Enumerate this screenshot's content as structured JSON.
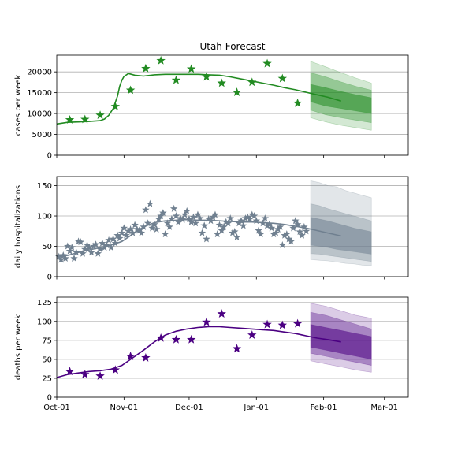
{
  "figure": {
    "title": "Utah Forecast"
  },
  "x_axis": {
    "ticks": [
      {
        "label": "Oct-01",
        "day": 0
      },
      {
        "label": "Nov-01",
        "day": 31
      },
      {
        "label": "Dec-01",
        "day": 61
      },
      {
        "label": "Jan-01",
        "day": 92
      },
      {
        "label": "Feb-01",
        "day": 123
      },
      {
        "label": "Mar-01",
        "day": 151
      }
    ],
    "xlim": [
      0,
      162
    ],
    "unit": "days since Oct-01"
  },
  "colors": {
    "cases": "#228b22",
    "hosp": "#708090",
    "deaths": "#4b0082",
    "grid": "#b0b0b0"
  },
  "chart_data": [
    {
      "type": "line",
      "title": "Utah Forecast",
      "ylabel": "cases per week",
      "ylim": [
        0,
        24000
      ],
      "yticks": [
        0,
        5000,
        10000,
        15000,
        20000
      ],
      "grid": "horizontal",
      "model": {
        "x": [
          0,
          5,
          10,
          15,
          20,
          22,
          24,
          26,
          28,
          29,
          30,
          31,
          33,
          36,
          40,
          45,
          50,
          55,
          60,
          65,
          70,
          75,
          80,
          85,
          90,
          95,
          100,
          105,
          110,
          115,
          120,
          125,
          131
        ],
        "y": [
          7500,
          7900,
          8000,
          8100,
          8300,
          8700,
          9600,
          11200,
          14200,
          16500,
          18000,
          18900,
          19600,
          19200,
          19000,
          19300,
          19400,
          19400,
          19400,
          19400,
          19300,
          19200,
          18800,
          18300,
          17800,
          17300,
          16800,
          16200,
          15700,
          15100,
          14500,
          13900,
          13000
        ]
      },
      "observed": {
        "x": [
          6,
          13,
          20,
          27,
          34,
          41,
          48,
          55,
          62,
          69,
          76,
          83,
          90,
          97,
          104,
          111
        ],
        "y": [
          8500,
          8600,
          9600,
          11700,
          15600,
          20800,
          22700,
          18000,
          20700,
          18800,
          17300,
          15100,
          17500,
          22000,
          18400,
          12500
        ]
      },
      "forecast_bands": {
        "x": [
          117,
          124,
          131,
          138,
          145
        ],
        "outer": {
          "lo": [
            9000,
            8000,
            7200,
            6600,
            6000
          ],
          "hi": [
            22500,
            21200,
            19800,
            18500,
            17300
          ]
        },
        "middle": {
          "lo": [
            10800,
            9700,
            9000,
            8400,
            7800
          ],
          "hi": [
            19800,
            18800,
            17600,
            16500,
            15600
          ]
        },
        "inner": {
          "lo": [
            12800,
            11800,
            11200,
            10600,
            10000
          ],
          "hi": [
            17000,
            16200,
            15300,
            14500,
            13800
          ]
        }
      }
    },
    {
      "type": "line",
      "ylabel": "daily hospitalizations",
      "ylim": [
        0,
        165
      ],
      "yticks": [
        0,
        50,
        100,
        150
      ],
      "grid": "horizontal",
      "model": {
        "x": [
          0,
          5,
          10,
          15,
          20,
          25,
          30,
          35,
          40,
          45,
          50,
          55,
          60,
          65,
          70,
          75,
          80,
          85,
          90,
          95,
          100,
          105,
          110,
          115,
          120,
          125,
          131
        ],
        "y": [
          33,
          35,
          40,
          44,
          48,
          52,
          58,
          70,
          82,
          89,
          92,
          93,
          94,
          93,
          93,
          92,
          91,
          90,
          90,
          89,
          88,
          86,
          83,
          80,
          76,
          72,
          67
        ]
      },
      "observed": {
        "x": [
          1,
          2,
          3,
          4,
          5,
          6,
          7,
          8,
          9,
          10,
          11,
          12,
          13,
          14,
          15,
          16,
          17,
          18,
          19,
          20,
          21,
          22,
          23,
          24,
          25,
          26,
          27,
          28,
          29,
          30,
          31,
          32,
          33,
          34,
          35,
          36,
          37,
          38,
          39,
          40,
          41,
          42,
          43,
          44,
          45,
          46,
          47,
          48,
          49,
          50,
          51,
          52,
          53,
          54,
          55,
          56,
          57,
          58,
          59,
          60,
          61,
          62,
          63,
          64,
          65,
          66,
          67,
          68,
          69,
          70,
          71,
          72,
          73,
          74,
          75,
          76,
          77,
          78,
          79,
          80,
          81,
          82,
          83,
          84,
          85,
          86,
          87,
          88,
          89,
          90,
          91,
          92,
          93,
          94,
          95,
          96,
          97,
          98,
          99,
          100,
          101,
          102,
          103,
          104,
          105,
          106,
          107,
          108,
          109,
          110,
          111,
          112,
          113,
          114,
          115
        ],
        "y": [
          33,
          28,
          35,
          30,
          50,
          42,
          48,
          30,
          40,
          58,
          57,
          38,
          45,
          52,
          48,
          40,
          50,
          53,
          38,
          45,
          55,
          48,
          52,
          60,
          48,
          62,
          55,
          68,
          63,
          72,
          80,
          68,
          75,
          78,
          72,
          85,
          78,
          76,
          72,
          82,
          110,
          88,
          120,
          80,
          86,
          78,
          95,
          100,
          105,
          70,
          88,
          82,
          95,
          112,
          100,
          90,
          96,
          94,
          102,
          108,
          95,
          90,
          98,
          88,
          102,
          96,
          72,
          84,
          62,
          95,
          92,
          98,
          102,
          70,
          85,
          76,
          82,
          90,
          88,
          96,
          72,
          74,
          65,
          88,
          92,
          84,
          96,
          98,
          95,
          102,
          100,
          92,
          76,
          70,
          88,
          96,
          84,
          86,
          80,
          70,
          72,
          78,
          82,
          52,
          68,
          70,
          62,
          58,
          80,
          92,
          86,
          74,
          68,
          82,
          75
        ],
        "scale_note": ""
      },
      "forecast_bands": {
        "x": [
          117,
          121,
          125,
          129,
          133,
          137,
          141,
          145
        ],
        "outer": {
          "lo": [
            28,
            27,
            26,
            24,
            22,
            21,
            19,
            18
          ],
          "hi": [
            158,
            155,
            150,
            148,
            142,
            138,
            134,
            130
          ]
        },
        "middle": {
          "lo": [
            38,
            37,
            35,
            33,
            31,
            29,
            27,
            25
          ],
          "hi": [
            120,
            117,
            112,
            108,
            104,
            100,
            96,
            92
          ]
        },
        "inner": {
          "lo": [
            52,
            50,
            48,
            45,
            43,
            41,
            39,
            37
          ],
          "hi": [
            98,
            95,
            92,
            88,
            84,
            80,
            77,
            74
          ]
        }
      }
    },
    {
      "type": "line",
      "ylabel": "deaths per week",
      "ylim": [
        0,
        132
      ],
      "yticks": [
        0,
        25,
        50,
        75,
        100,
        125
      ],
      "grid": "horizontal",
      "model": {
        "x": [
          0,
          5,
          10,
          15,
          20,
          25,
          30,
          35,
          40,
          45,
          50,
          55,
          60,
          65,
          70,
          75,
          80,
          85,
          90,
          95,
          100,
          105,
          110,
          115,
          120,
          125,
          131
        ],
        "y": [
          26,
          30,
          32,
          34,
          35,
          37,
          42,
          52,
          62,
          73,
          82,
          87,
          90,
          92,
          93,
          93,
          92,
          91,
          90,
          89,
          88,
          86,
          84,
          81,
          78,
          76,
          73
        ]
      },
      "observed": {
        "x": [
          6,
          13,
          20,
          27,
          34,
          41,
          48,
          55,
          62,
          69,
          76,
          83,
          90,
          97,
          104,
          111
        ],
        "y": [
          34,
          30,
          28,
          36,
          54,
          52,
          78,
          76,
          76,
          99,
          110,
          64,
          82,
          96,
          95,
          97
        ]
      },
      "forecast_bands": {
        "x": [
          117,
          124,
          131,
          138,
          145
        ],
        "outer": {
          "lo": [
            48,
            44,
            40,
            36,
            33
          ],
          "hi": [
            124,
            120,
            114,
            108,
            104
          ]
        },
        "middle": {
          "lo": [
            58,
            54,
            50,
            46,
            42
          ],
          "hi": [
            112,
            108,
            102,
            96,
            90
          ]
        },
        "inner": {
          "lo": [
            66,
            62,
            58,
            54,
            50
          ],
          "hi": [
            96,
            92,
            88,
            84,
            80
          ]
        }
      }
    }
  ]
}
